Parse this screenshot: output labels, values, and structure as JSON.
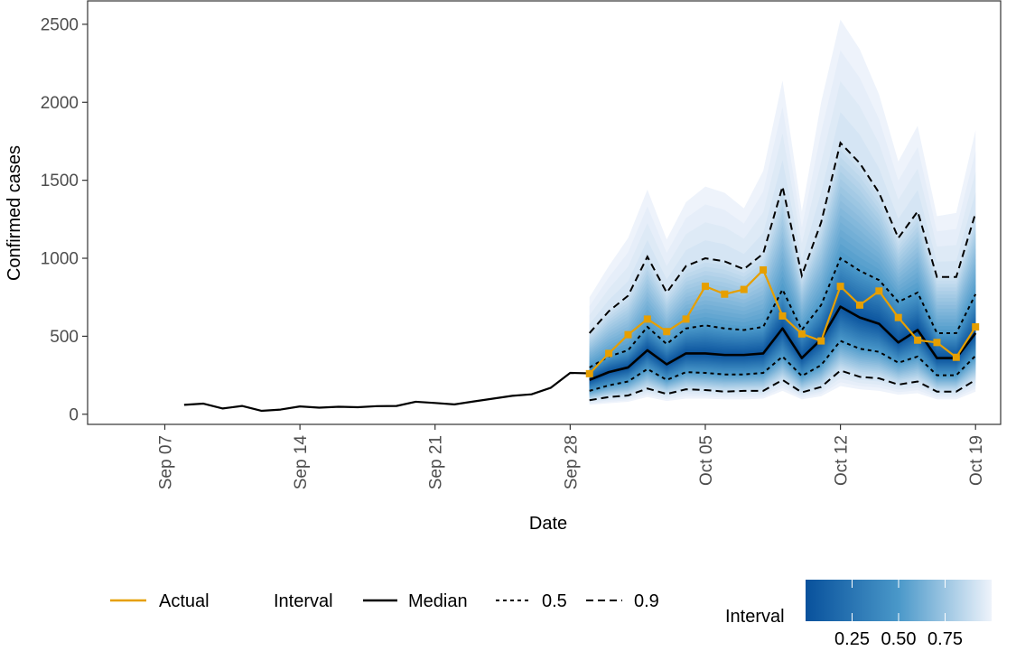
{
  "chart_data": {
    "type": "line",
    "xlabel": "Date",
    "ylabel": "Confirmed cases",
    "x_tick_labels": [
      "Sep 07",
      "Sep 14",
      "Sep 21",
      "Sep 28",
      "Oct 05",
      "Oct 12",
      "Oct 19"
    ],
    "x_tick_dates": [
      "2020-09-07",
      "2020-09-14",
      "2020-09-21",
      "2020-09-28",
      "2020-10-05",
      "2020-10-12",
      "2020-10-19"
    ],
    "xlim": [
      "2020-09-03",
      "2020-10-19"
    ],
    "y_ticks": [
      0,
      500,
      1000,
      1500,
      2000,
      2500
    ],
    "ylim": [
      -65,
      2650
    ],
    "grid": false,
    "history": {
      "dates": [
        "2020-09-08",
        "2020-09-09",
        "2020-09-10",
        "2020-09-11",
        "2020-09-12",
        "2020-09-13",
        "2020-09-14",
        "2020-09-15",
        "2020-09-16",
        "2020-09-17",
        "2020-09-18",
        "2020-09-19",
        "2020-09-20",
        "2020-09-21",
        "2020-09-22",
        "2020-09-23",
        "2020-09-24",
        "2020-09-25",
        "2020-09-26",
        "2020-09-27",
        "2020-09-28",
        "2020-09-29"
      ],
      "values": [
        60,
        68,
        37,
        53,
        22,
        30,
        50,
        42,
        48,
        45,
        52,
        53,
        80,
        72,
        63,
        82,
        100,
        118,
        128,
        170,
        265,
        262
      ]
    },
    "forecast": {
      "dates": [
        "2020-09-29",
        "2020-09-30",
        "2020-10-01",
        "2020-10-02",
        "2020-10-03",
        "2020-10-04",
        "2020-10-05",
        "2020-10-06",
        "2020-10-07",
        "2020-10-08",
        "2020-10-09",
        "2020-10-10",
        "2020-10-11",
        "2020-10-12",
        "2020-10-13",
        "2020-10-14",
        "2020-10-15",
        "2020-10-16",
        "2020-10-17",
        "2020-10-18",
        "2020-10-19"
      ],
      "median": [
        220,
        270,
        300,
        410,
        320,
        390,
        390,
        380,
        380,
        390,
        550,
        360,
        480,
        690,
        620,
        580,
        460,
        540,
        360,
        360,
        520
      ],
      "q25": [
        150,
        185,
        210,
        290,
        220,
        270,
        265,
        255,
        255,
        265,
        370,
        245,
        315,
        470,
        420,
        400,
        330,
        370,
        250,
        250,
        375
      ],
      "q75": [
        300,
        370,
        410,
        560,
        450,
        550,
        570,
        550,
        540,
        560,
        800,
        540,
        700,
        1000,
        920,
        860,
        720,
        780,
        520,
        520,
        770
      ],
      "q05": [
        90,
        110,
        120,
        165,
        130,
        160,
        155,
        145,
        150,
        150,
        220,
        140,
        175,
        280,
        240,
        230,
        190,
        210,
        145,
        145,
        220
      ],
      "q95": [
        520,
        660,
        760,
        1010,
        780,
        950,
        1000,
        980,
        930,
        1030,
        1460,
        890,
        1230,
        1740,
        1610,
        1420,
        1130,
        1300,
        880,
        880,
        1290
      ],
      "upper": [
        750,
        950,
        1130,
        1440,
        1120,
        1360,
        1460,
        1420,
        1320,
        1560,
        2140,
        1300,
        2000,
        2530,
        2340,
        2050,
        1620,
        1850,
        1270,
        1290,
        1820
      ],
      "lower": [
        60,
        70,
        80,
        110,
        85,
        100,
        100,
        95,
        95,
        100,
        150,
        95,
        115,
        180,
        160,
        150,
        125,
        135,
        95,
        95,
        145
      ]
    },
    "actual": {
      "dates": [
        "2020-09-29",
        "2020-09-30",
        "2020-10-01",
        "2020-10-02",
        "2020-10-03",
        "2020-10-04",
        "2020-10-05",
        "2020-10-06",
        "2020-10-07",
        "2020-10-08",
        "2020-10-09",
        "2020-10-10",
        "2020-10-11",
        "2020-10-12",
        "2020-10-13",
        "2020-10-14",
        "2020-10-15",
        "2020-10-16",
        "2020-10-17",
        "2020-10-18",
        "2020-10-19"
      ],
      "values": [
        260,
        390,
        510,
        610,
        530,
        610,
        820,
        770,
        800,
        925,
        630,
        515,
        470,
        820,
        700,
        790,
        620,
        475,
        460,
        365,
        560
      ]
    },
    "legend": {
      "actual_label": "Actual",
      "interval_title": "Interval",
      "median_label": "Median",
      "q50_label": "0.5",
      "q90_label": "0.9",
      "colorbar_title": "Interval",
      "colorbar_ticks": [
        "0.25",
        "0.50",
        "0.75"
      ],
      "colorbar_tick_values": [
        0.25,
        0.5,
        0.75
      ],
      "position": "bottom"
    },
    "colors": {
      "actual": "#E69F00",
      "median": "#000000",
      "band_dark": "#08519C",
      "band_mid": "#4A98C9",
      "band_light": "#EEF3FB"
    }
  }
}
